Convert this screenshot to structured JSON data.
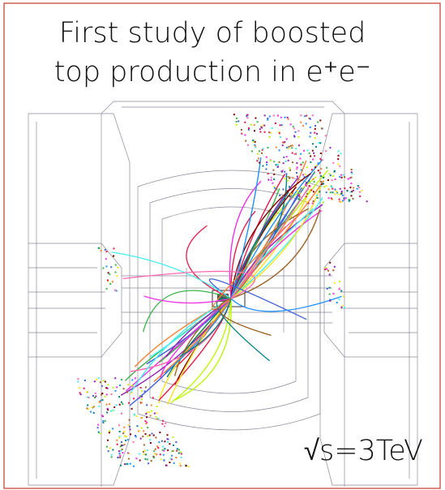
{
  "title": {
    "line1": "First study of boosted",
    "line2": "top production in e⁺e⁻"
  },
  "energy_label": "√s=3TeV"
}
